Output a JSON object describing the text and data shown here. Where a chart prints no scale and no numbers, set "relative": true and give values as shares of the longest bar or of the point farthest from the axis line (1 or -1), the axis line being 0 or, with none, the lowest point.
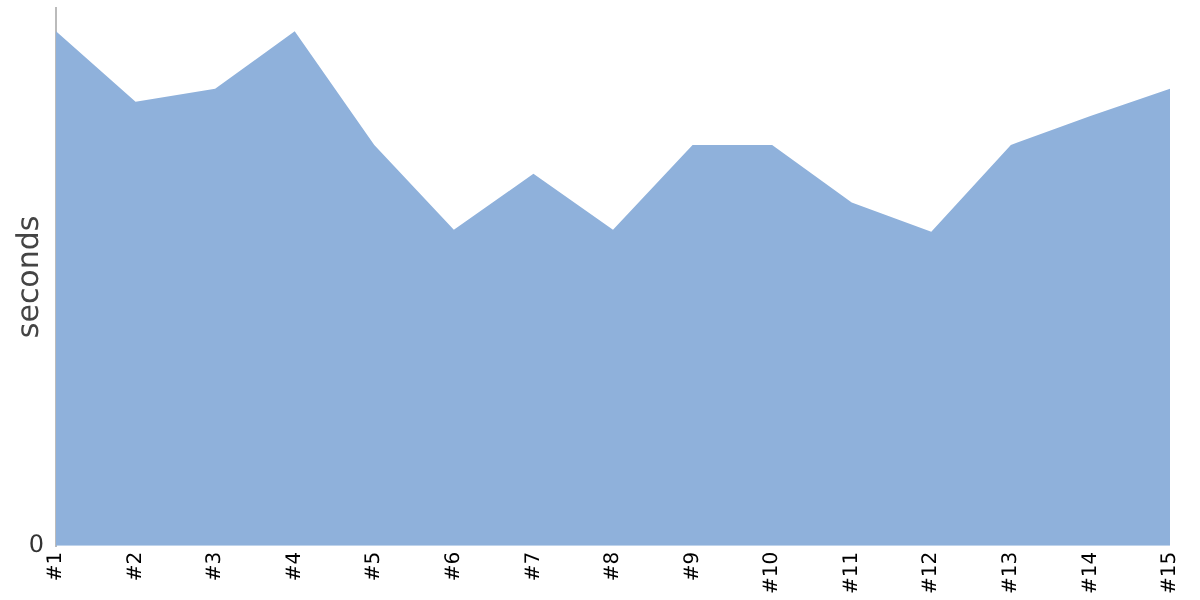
{
  "chart_data": {
    "type": "area",
    "relative": true,
    "ylabel": "seconds",
    "categories": [
      "#1",
      "#2",
      "#3",
      "#4",
      "#5",
      "#6",
      "#7",
      "#8",
      "#9",
      "#10",
      "#11",
      "#12",
      "#13",
      "#14",
      "#15"
    ],
    "series": [
      {
        "color": "#8fb1db",
        "values": [
          1,
          0.863,
          0.888,
          1,
          0.779,
          0.614,
          0.723,
          0.614,
          0.779,
          0.779,
          0.667,
          0.61,
          0.779,
          0.835,
          0.888
        ]
      }
    ],
    "annotations": [
      "0"
    ],
    "legend": false
  }
}
